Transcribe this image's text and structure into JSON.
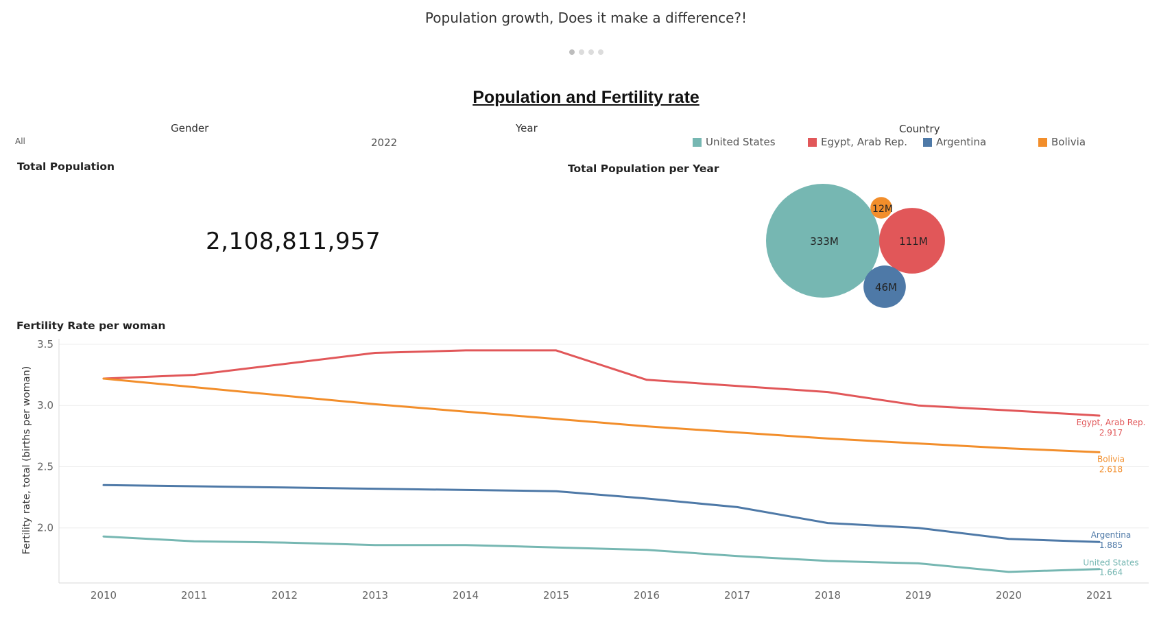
{
  "story": {
    "title": "Population growth, Does it make a difference?!",
    "dots": 4,
    "active_dot": 0
  },
  "dashboard": {
    "title": "Population and Fertility rate"
  },
  "filters": {
    "gender": {
      "label": "Gender",
      "value": "All"
    },
    "year": {
      "label": "Year",
      "value": "2022"
    },
    "country": {
      "label": "Country"
    }
  },
  "legend": {
    "items": [
      {
        "label": "United States",
        "color": "#76b7b2"
      },
      {
        "label": "Egypt, Arab Rep.",
        "color": "#e15759"
      },
      {
        "label": "Argentina",
        "color": "#4e79a7"
      },
      {
        "label": "Bolivia",
        "color": "#f28e2b"
      }
    ]
  },
  "total_population": {
    "title": "Total Population",
    "value": "2,108,811,957"
  },
  "chart_data": [
    {
      "type": "bubble",
      "title": "Total Population per Year",
      "bubbles": [
        {
          "country": "United States",
          "label": "333M",
          "value": 333,
          "color": "#76b7b2"
        },
        {
          "country": "Egypt, Arab Rep.",
          "label": "111M",
          "value": 111,
          "color": "#e15759"
        },
        {
          "country": "Argentina",
          "label": "46M",
          "value": 46,
          "color": "#4e79a7"
        },
        {
          "country": "Bolivia",
          "label": "12M",
          "value": 12,
          "color": "#f28e2b"
        }
      ]
    },
    {
      "type": "line",
      "title": "Fertility Rate per woman",
      "ylabel": "Fertility rate, total (births per woman)",
      "xlabel": "",
      "x": [
        2010,
        2011,
        2012,
        2013,
        2014,
        2015,
        2016,
        2017,
        2018,
        2019,
        2020,
        2021
      ],
      "ylim": [
        1.55,
        3.5
      ],
      "yticks": [
        2.0,
        2.5,
        3.0,
        3.5
      ],
      "ytick_labels": [
        "2.0",
        "2.5",
        "3.0",
        "3.5"
      ],
      "grid": true,
      "series": [
        {
          "name": "Egypt, Arab Rep.",
          "color": "#e15759",
          "end_label": "2.917",
          "values": [
            3.22,
            3.25,
            3.34,
            3.43,
            3.45,
            3.45,
            3.21,
            3.16,
            3.11,
            3.0,
            2.96,
            2.917
          ]
        },
        {
          "name": "Bolivia",
          "color": "#f28e2b",
          "end_label": "2.618",
          "values": [
            3.22,
            3.15,
            3.08,
            3.01,
            2.95,
            2.89,
            2.83,
            2.78,
            2.73,
            2.69,
            2.65,
            2.618
          ]
        },
        {
          "name": "Argentina",
          "color": "#4e79a7",
          "end_label": "1.885",
          "values": [
            2.35,
            2.34,
            2.33,
            2.32,
            2.31,
            2.3,
            2.24,
            2.17,
            2.04,
            2.0,
            1.91,
            1.885
          ]
        },
        {
          "name": "United States",
          "color": "#76b7b2",
          "end_label": "1.664",
          "values": [
            1.93,
            1.89,
            1.88,
            1.86,
            1.86,
            1.84,
            1.82,
            1.77,
            1.73,
            1.71,
            1.64,
            1.664
          ]
        }
      ]
    }
  ]
}
